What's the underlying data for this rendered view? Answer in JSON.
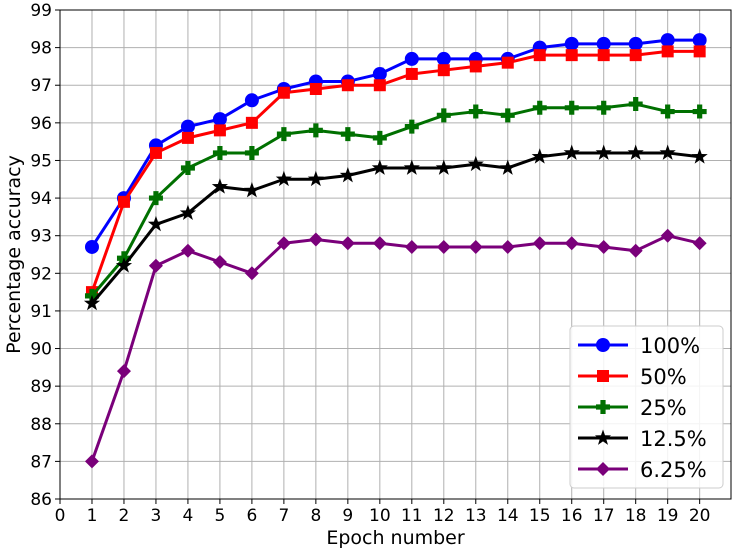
{
  "chart_data": {
    "type": "line",
    "title": "",
    "xlabel": "Epoch number",
    "ylabel": "Percentage accuracy",
    "xlim": [
      0,
      20.98
    ],
    "ylim": [
      86,
      99
    ],
    "xticks": [
      0,
      1,
      2,
      3,
      4,
      5,
      6,
      7,
      8,
      9,
      10,
      11,
      12,
      13,
      14,
      15,
      16,
      17,
      18,
      19,
      20
    ],
    "yticks": [
      86,
      87,
      88,
      89,
      90,
      91,
      92,
      93,
      94,
      95,
      96,
      97,
      98,
      99
    ],
    "grid": true,
    "legend_position": "bottom-right",
    "x": [
      1,
      2,
      3,
      4,
      5,
      6,
      7,
      8,
      9,
      10,
      11,
      12,
      13,
      14,
      15,
      16,
      17,
      18,
      19,
      20
    ],
    "series": [
      {
        "name": "100%",
        "color": "#0000ff",
        "marker": "circle",
        "values": [
          92.7,
          94.0,
          95.4,
          95.9,
          96.1,
          96.6,
          96.9,
          97.1,
          97.1,
          97.3,
          97.7,
          97.7,
          97.7,
          97.7,
          98.0,
          98.1,
          98.1,
          98.1,
          98.2,
          98.2
        ]
      },
      {
        "name": "50%",
        "color": "#ff0000",
        "marker": "square",
        "values": [
          91.5,
          93.9,
          95.2,
          95.6,
          95.8,
          96.0,
          96.8,
          96.9,
          97.0,
          97.0,
          97.3,
          97.4,
          97.5,
          97.6,
          97.8,
          97.8,
          97.8,
          97.8,
          97.9,
          97.9
        ]
      },
      {
        "name": "25%",
        "color": "#007000",
        "marker": "plus",
        "values": [
          91.4,
          92.4,
          94.0,
          94.8,
          95.2,
          95.2,
          95.7,
          95.8,
          95.7,
          95.6,
          95.9,
          96.2,
          96.3,
          96.2,
          96.4,
          96.4,
          96.4,
          96.5,
          96.3,
          96.3
        ]
      },
      {
        "name": "12.5%",
        "color": "#000000",
        "marker": "star",
        "values": [
          91.2,
          92.2,
          93.3,
          93.6,
          94.3,
          94.2,
          94.5,
          94.5,
          94.6,
          94.8,
          94.8,
          94.8,
          94.9,
          94.8,
          95.1,
          95.2,
          95.2,
          95.2,
          95.2,
          95.1
        ]
      },
      {
        "name": "6.25%",
        "color": "#7a007a",
        "marker": "diamond",
        "values": [
          87.0,
          89.4,
          92.2,
          92.6,
          92.3,
          92.0,
          92.8,
          92.9,
          92.8,
          92.8,
          92.7,
          92.7,
          92.7,
          92.7,
          92.8,
          92.8,
          92.7,
          92.6,
          93.0,
          92.8
        ]
      }
    ]
  }
}
